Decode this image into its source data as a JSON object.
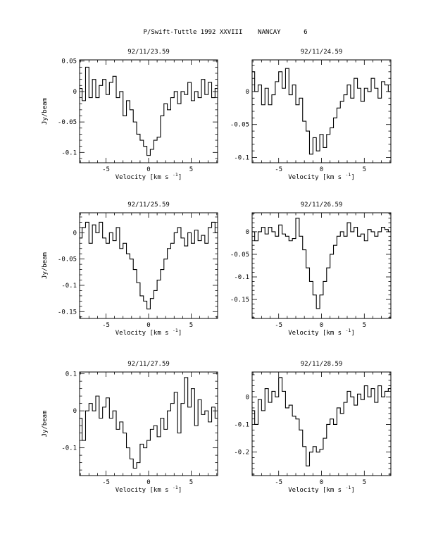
{
  "header": {
    "title": "P/Swift-Tuttle 1992 XXVIII    NANCAY      6"
  },
  "chart_data": [
    {
      "type": "line",
      "title": "92/11/23.59",
      "xlabel": "Velocity [km s",
      "xlabel_sup": "-1",
      "xlabel_end": "]",
      "ylabel": "Jy/beam",
      "xlim": [
        -8.1,
        8.1
      ],
      "ylim": [
        -0.117,
        0.052
      ],
      "xticks": [
        -5,
        0,
        5
      ],
      "yticks": [
        0.05,
        0,
        -0.05,
        -0.1
      ],
      "ytick_labels": [
        "0.05",
        "0",
        "-0.05",
        "-0.1"
      ],
      "x": [
        -8.0,
        -7.6,
        -7.2,
        -6.8,
        -6.4,
        -6.0,
        -5.6,
        -5.2,
        -4.8,
        -4.4,
        -4.0,
        -3.6,
        -3.2,
        -2.8,
        -2.4,
        -2.0,
        -1.6,
        -1.2,
        -0.8,
        -0.4,
        0.0,
        0.4,
        0.8,
        1.2,
        1.6,
        2.0,
        2.4,
        2.8,
        3.2,
        3.6,
        4.0,
        4.4,
        4.8,
        5.2,
        5.6,
        6.0,
        6.4,
        6.8,
        7.2,
        7.6,
        8.0
      ],
      "values": [
        0.005,
        -0.015,
        0.04,
        -0.01,
        0.02,
        -0.01,
        0.01,
        0.02,
        -0.005,
        0.015,
        0.025,
        -0.01,
        0.0,
        -0.04,
        -0.015,
        -0.03,
        -0.05,
        -0.07,
        -0.08,
        -0.09,
        -0.105,
        -0.095,
        -0.08,
        -0.075,
        -0.04,
        -0.02,
        -0.03,
        -0.01,
        0.0,
        -0.02,
        0.0,
        -0.005,
        0.015,
        -0.015,
        0.0,
        -0.01,
        0.02,
        -0.005,
        0.015,
        -0.01,
        0.005
      ]
    },
    {
      "type": "line",
      "title": "92/11/24.59",
      "xlabel": "Velocity [km s",
      "xlabel_sup": "-1",
      "xlabel_end": "]",
      "ylabel": "",
      "xlim": [
        -8.1,
        8.1
      ],
      "ylim": [
        -0.108,
        0.048
      ],
      "xticks": [
        -5,
        0,
        5
      ],
      "yticks": [
        0,
        -0.05,
        -0.1
      ],
      "ytick_labels": [
        "0",
        "-0.05",
        "-0.1"
      ],
      "x": [
        -8.0,
        -7.6,
        -7.2,
        -6.8,
        -6.4,
        -6.0,
        -5.6,
        -5.2,
        -4.8,
        -4.4,
        -4.0,
        -3.6,
        -3.2,
        -2.8,
        -2.4,
        -2.0,
        -1.6,
        -1.2,
        -0.8,
        -0.4,
        0.0,
        0.4,
        0.8,
        1.2,
        1.6,
        2.0,
        2.4,
        2.8,
        3.2,
        3.6,
        4.0,
        4.4,
        4.8,
        5.2,
        5.6,
        6.0,
        6.4,
        6.8,
        7.2,
        7.6,
        8.0
      ],
      "values": [
        0.03,
        0.0,
        0.01,
        -0.02,
        0.005,
        -0.02,
        -0.005,
        0.015,
        0.03,
        0.005,
        0.035,
        -0.005,
        0.01,
        -0.02,
        -0.01,
        -0.045,
        -0.06,
        -0.095,
        -0.07,
        -0.09,
        -0.065,
        -0.085,
        -0.065,
        -0.055,
        -0.04,
        -0.025,
        -0.015,
        -0.005,
        0.01,
        -0.01,
        0.02,
        0.005,
        -0.015,
        0.005,
        0.0,
        0.02,
        0.005,
        -0.01,
        0.015,
        0.01,
        0.0
      ]
    },
    {
      "type": "line",
      "title": "92/11/25.59",
      "xlabel": "Velocity [km s",
      "xlabel_sup": "-1",
      "xlabel_end": "]",
      "ylabel": "Jy/beam",
      "xlim": [
        -8.1,
        8.1
      ],
      "ylim": [
        -0.163,
        0.038
      ],
      "xticks": [
        -5,
        0,
        5
      ],
      "yticks": [
        0,
        -0.05,
        -0.1,
        -0.15
      ],
      "ytick_labels": [
        "0",
        "-0.05",
        "-0.1",
        "-0.15"
      ],
      "x": [
        -8.0,
        -7.6,
        -7.2,
        -6.8,
        -6.4,
        -6.0,
        -5.6,
        -5.2,
        -4.8,
        -4.4,
        -4.0,
        -3.6,
        -3.2,
        -2.8,
        -2.4,
        -2.0,
        -1.6,
        -1.2,
        -0.8,
        -0.4,
        0.0,
        0.4,
        0.8,
        1.2,
        1.6,
        2.0,
        2.4,
        2.8,
        3.2,
        3.6,
        4.0,
        4.4,
        4.8,
        5.2,
        5.6,
        6.0,
        6.4,
        6.8,
        7.2,
        7.6,
        8.0
      ],
      "values": [
        -0.01,
        0.01,
        0.02,
        -0.02,
        0.015,
        0.0,
        0.02,
        -0.01,
        -0.02,
        0.0,
        -0.015,
        0.01,
        -0.03,
        -0.02,
        -0.04,
        -0.05,
        -0.07,
        -0.095,
        -0.12,
        -0.13,
        -0.145,
        -0.125,
        -0.11,
        -0.09,
        -0.07,
        -0.05,
        -0.03,
        -0.02,
        0.0,
        0.01,
        -0.01,
        -0.025,
        0.0,
        -0.02,
        0.005,
        -0.015,
        -0.005,
        -0.02,
        0.01,
        0.02,
        0.0
      ]
    },
    {
      "type": "line",
      "title": "92/11/26.59",
      "xlabel": "Velocity [km s",
      "xlabel_sup": "-1",
      "xlabel_end": "]",
      "ylabel": "",
      "xlim": [
        -8.1,
        8.1
      ],
      "ylim": [
        -0.192,
        0.042
      ],
      "xticks": [
        -5,
        0,
        5
      ],
      "yticks": [
        0,
        -0.05,
        -0.1,
        -0.15
      ],
      "ytick_labels": [
        "0",
        "-0.05",
        "-0.1",
        "-0.15"
      ],
      "x": [
        -8.0,
        -7.6,
        -7.2,
        -6.8,
        -6.4,
        -6.0,
        -5.6,
        -5.2,
        -4.8,
        -4.4,
        -4.0,
        -3.6,
        -3.2,
        -2.8,
        -2.4,
        -2.0,
        -1.6,
        -1.2,
        -0.8,
        -0.4,
        0.0,
        0.4,
        0.8,
        1.2,
        1.6,
        2.0,
        2.4,
        2.8,
        3.2,
        3.6,
        4.0,
        4.4,
        4.8,
        5.2,
        5.6,
        6.0,
        6.4,
        6.8,
        7.2,
        7.6,
        8.0
      ],
      "values": [
        0.0,
        -0.02,
        0.0,
        0.01,
        -0.005,
        0.01,
        0.0,
        -0.01,
        0.015,
        -0.005,
        -0.01,
        -0.02,
        -0.015,
        0.03,
        -0.01,
        -0.04,
        -0.08,
        -0.11,
        -0.14,
        -0.17,
        -0.14,
        -0.11,
        -0.08,
        -0.05,
        -0.03,
        -0.01,
        0.0,
        -0.01,
        0.02,
        0.0,
        0.01,
        -0.01,
        -0.005,
        -0.02,
        0.005,
        0.0,
        -0.01,
        0.0,
        0.01,
        0.005,
        0.0
      ]
    },
    {
      "type": "line",
      "title": "92/11/27.59",
      "xlabel": "Velocity [km s",
      "xlabel_sup": "-1",
      "xlabel_end": "]",
      "ylabel": "Jy/beam",
      "xlim": [
        -8.1,
        8.1
      ],
      "ylim": [
        -0.175,
        0.105
      ],
      "xticks": [
        -5,
        0,
        5
      ],
      "yticks": [
        0.1,
        0,
        -0.1
      ],
      "ytick_labels": [
        "0.1",
        "0",
        "-0.1"
      ],
      "x": [
        -8.0,
        -7.6,
        -7.2,
        -6.8,
        -6.4,
        -6.0,
        -5.6,
        -5.2,
        -4.8,
        -4.4,
        -4.0,
        -3.6,
        -3.2,
        -2.8,
        -2.4,
        -2.0,
        -1.6,
        -1.2,
        -0.8,
        -0.4,
        0.0,
        0.4,
        0.8,
        1.2,
        1.6,
        2.0,
        2.4,
        2.8,
        3.2,
        3.6,
        4.0,
        4.4,
        4.8,
        5.2,
        5.6,
        6.0,
        6.4,
        6.8,
        7.2,
        7.6,
        8.0
      ],
      "values": [
        -0.02,
        -0.08,
        0.0,
        0.02,
        0.0,
        0.04,
        -0.02,
        0.01,
        0.035,
        -0.02,
        0.0,
        -0.05,
        -0.03,
        -0.06,
        -0.1,
        -0.13,
        -0.155,
        -0.14,
        -0.09,
        -0.1,
        -0.08,
        -0.05,
        -0.04,
        -0.07,
        -0.02,
        -0.05,
        0.0,
        0.02,
        0.05,
        -0.06,
        0.02,
        0.09,
        0.01,
        0.06,
        -0.04,
        0.03,
        -0.01,
        0.0,
        -0.03,
        0.01,
        -0.02
      ]
    },
    {
      "type": "line",
      "title": "92/11/28.59",
      "xlabel": "Velocity [km s",
      "xlabel_sup": "-1",
      "xlabel_end": "]",
      "ylabel": "",
      "xlim": [
        -8.1,
        8.1
      ],
      "ylim": [
        -0.285,
        0.09
      ],
      "xticks": [
        -5,
        0,
        5
      ],
      "yticks": [
        0,
        -0.1,
        -0.2
      ],
      "ytick_labels": [
        "0",
        "-0.1",
        "-0.2"
      ],
      "x": [
        -8.0,
        -7.6,
        -7.2,
        -6.8,
        -6.4,
        -6.0,
        -5.6,
        -5.2,
        -4.8,
        -4.4,
        -4.0,
        -3.6,
        -3.2,
        -2.8,
        -2.4,
        -2.0,
        -1.6,
        -1.2,
        -0.8,
        -0.4,
        0.0,
        0.4,
        0.8,
        1.2,
        1.6,
        2.0,
        2.4,
        2.8,
        3.2,
        3.6,
        4.0,
        4.4,
        4.8,
        5.2,
        5.6,
        6.0,
        6.4,
        6.8,
        7.2,
        7.6,
        8.0
      ],
      "values": [
        -0.05,
        -0.1,
        -0.01,
        -0.05,
        0.03,
        -0.02,
        0.02,
        0.0,
        0.07,
        0.02,
        -0.04,
        -0.03,
        -0.07,
        -0.08,
        -0.12,
        -0.18,
        -0.25,
        -0.2,
        -0.18,
        -0.2,
        -0.19,
        -0.15,
        -0.1,
        -0.08,
        -0.1,
        -0.04,
        -0.06,
        -0.02,
        0.02,
        0.0,
        -0.03,
        0.01,
        -0.01,
        0.04,
        0.0,
        0.03,
        -0.02,
        0.04,
        0.0,
        0.02,
        0.03
      ]
    }
  ]
}
